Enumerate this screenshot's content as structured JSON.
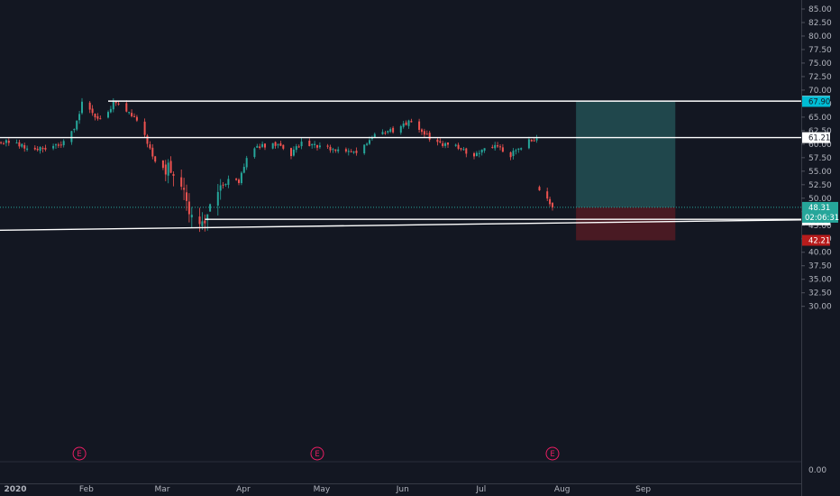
{
  "chart_data": {
    "type": "candlestick",
    "y_axis": {
      "range": [
        -0.5,
        86
      ],
      "ticks": [
        "85.00",
        "82.50",
        "80.00",
        "77.50",
        "75.00",
        "72.50",
        "70.00",
        "67.50",
        "65.00",
        "62.50",
        "60.00",
        "57.50",
        "55.00",
        "52.50",
        "50.00",
        "47.50",
        "45.00",
        "42.50",
        "40.00",
        "37.50",
        "35.00",
        "32.50",
        "30.00"
      ],
      "volume_ticks": [
        "0.00"
      ]
    },
    "x_axis": {
      "labels": [
        {
          "label": "2020",
          "date": "2020-01-01"
        },
        {
          "label": "Feb",
          "date": "2020-02-01"
        },
        {
          "label": "Mar",
          "date": "2020-03-01"
        },
        {
          "label": "Apr",
          "date": "2020-04-01"
        },
        {
          "label": "May",
          "date": "2020-05-01"
        },
        {
          "label": "Jun",
          "date": "2020-06-01"
        },
        {
          "label": "Jul",
          "date": "2020-07-01"
        },
        {
          "label": "Aug",
          "date": "2020-08-01"
        },
        {
          "label": "Sep",
          "date": "2020-09-01"
        }
      ]
    },
    "price_path": [
      [
        "2019-12-20",
        59.5
      ],
      [
        "2020-01-03",
        60.5
      ],
      [
        "2020-01-10",
        59.3
      ],
      [
        "2020-01-17",
        59.0
      ],
      [
        "2020-01-24",
        60.2
      ],
      [
        "2020-01-28",
        63.0
      ],
      [
        "2020-01-31",
        67.5
      ],
      [
        "2020-02-07",
        64.5
      ],
      [
        "2020-02-12",
        67.5
      ],
      [
        "2020-02-18",
        66.0
      ],
      [
        "2020-02-21",
        64.5
      ],
      [
        "2020-02-24",
        61.5
      ],
      [
        "2020-02-28",
        57.0
      ],
      [
        "2020-03-05",
        55.0
      ],
      [
        "2020-03-09",
        51.5
      ],
      [
        "2020-03-12",
        48.0
      ],
      [
        "2020-03-16",
        46.0
      ],
      [
        "2020-03-19",
        47.0
      ],
      [
        "2020-03-24",
        51.5
      ],
      [
        "2020-03-27",
        53.5
      ],
      [
        "2020-03-31",
        53.0
      ],
      [
        "2020-04-03",
        57.0
      ],
      [
        "2020-04-07",
        59.5
      ],
      [
        "2020-04-14",
        60.0
      ],
      [
        "2020-04-20",
        58.0
      ],
      [
        "2020-04-24",
        60.5
      ],
      [
        "2020-05-01",
        59.5
      ],
      [
        "2020-05-08",
        59.0
      ],
      [
        "2020-05-15",
        58.5
      ],
      [
        "2020-05-22",
        61.5
      ],
      [
        "2020-05-29",
        62.5
      ],
      [
        "2020-06-05",
        64.5
      ],
      [
        "2020-06-10",
        62.0
      ],
      [
        "2020-06-15",
        60.0
      ],
      [
        "2020-06-22",
        59.5
      ],
      [
        "2020-06-29",
        58.0
      ],
      [
        "2020-07-06",
        59.8
      ],
      [
        "2020-07-13",
        58.0
      ],
      [
        "2020-07-20",
        60.5
      ],
      [
        "2020-07-23",
        61.0
      ],
      [
        "2020-07-24",
        51.5
      ],
      [
        "2020-07-27",
        50.0
      ],
      [
        "2020-07-29",
        48.3
      ]
    ],
    "gap_dates": [
      "2020-07-23"
    ],
    "horizontal_lines": [
      {
        "price": 67.96,
        "label": "67.96",
        "from": "2020-02-10"
      },
      {
        "price": 61.21,
        "label": "61.21",
        "from": "2019-12-20"
      },
      {
        "price": 46.1,
        "label": "46.10",
        "from": "2020-03-18"
      }
    ],
    "trend_line": {
      "from": {
        "date": "2019-12-20",
        "price": 44.0
      },
      "to": {
        "date": "2020-09-30",
        "price": 46.0
      },
      "label": "46.00"
    },
    "position": {
      "from": "2020-08-07",
      "to": "2020-09-14",
      "entry": 48.31,
      "target": 67.9,
      "stop": 42.21,
      "target_label": "67.90",
      "stop_label": "42.21",
      "profit_color": "#2c6f6f",
      "loss_color": "#6e1d25"
    },
    "last_price": {
      "price": 48.31,
      "label": "48.31",
      "countdown": "02:06:31"
    },
    "earnings_markers": [
      {
        "date": "2020-01-30",
        "label": "E"
      },
      {
        "date": "2020-04-30",
        "label": "E"
      },
      {
        "date": "2020-07-29",
        "label": "E"
      }
    ]
  },
  "colors": {
    "background": "#131722",
    "up": "#26a69a",
    "down": "#ef5350",
    "axis_text": "#b2b5be",
    "accent_cyan": "#00bcd4",
    "earnings": "#e91e63"
  }
}
